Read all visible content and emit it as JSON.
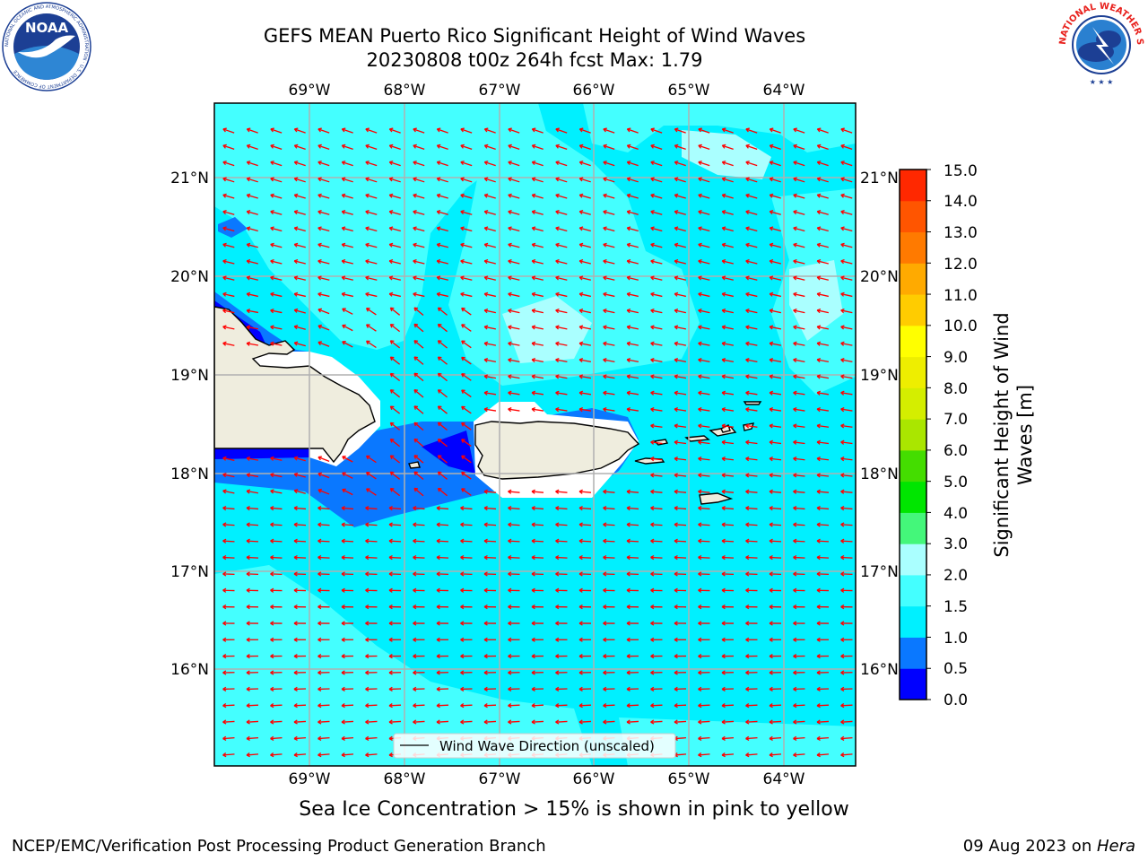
{
  "title": {
    "line1": "GEFS MEAN Puerto Rico Significant Height of Wind Waves",
    "line2": "20230808 t00z 264h fcst   Max: 1.79"
  },
  "logos": {
    "left": {
      "name": "noaa-logo",
      "text": "NOAA",
      "ring_text": "NATIONAL OCEANIC AND ATMOSPHERIC ADMINISTRATION · U.S. DEPARTMENT OF COMMERCE"
    },
    "right": {
      "name": "nws-logo",
      "ring_text": "NATIONAL WEATHER SERVICE"
    }
  },
  "map": {
    "lon_labels": [
      "69°W",
      "68°W",
      "67°W",
      "66°W",
      "65°W",
      "64°W"
    ],
    "lat_labels": [
      "21°N",
      "20°N",
      "19°N",
      "18°N",
      "17°N",
      "16°N"
    ],
    "legend": "Wind Wave Direction (unscaled)",
    "arrow_color": "#ff0000",
    "land_color": "#efedde",
    "grid_color": "#b0b0b0"
  },
  "colorbar": {
    "label_line1": "Significant Height of Wind",
    "label_line2": "Waves [m]",
    "ticks": [
      "0.0",
      "0.5",
      "1.0",
      "1.5",
      "2.0",
      "3.0",
      "4.0",
      "5.0",
      "6.0",
      "7.0",
      "8.0",
      "9.0",
      "10.0",
      "11.0",
      "12.0",
      "13.0",
      "14.0",
      "15.0"
    ],
    "colors": [
      "#0000ff",
      "#0a78ff",
      "#00f0ff",
      "#44ffff",
      "#aaffff",
      "#44f77a",
      "#00e600",
      "#44dd00",
      "#aae600",
      "#d4ee00",
      "#eeee00",
      "#ffff00",
      "#ffcc00",
      "#ffaa00",
      "#ff7a00",
      "#ff5500",
      "#ff2800"
    ]
  },
  "subtitle": "Sea Ice Concentration > 15% is shown in pink to yellow",
  "footer": {
    "left": "NCEP/EMC/Verification Post Processing Product Generation Branch",
    "right_date": "09 Aug 2023 on ",
    "right_host": "Hera"
  }
}
